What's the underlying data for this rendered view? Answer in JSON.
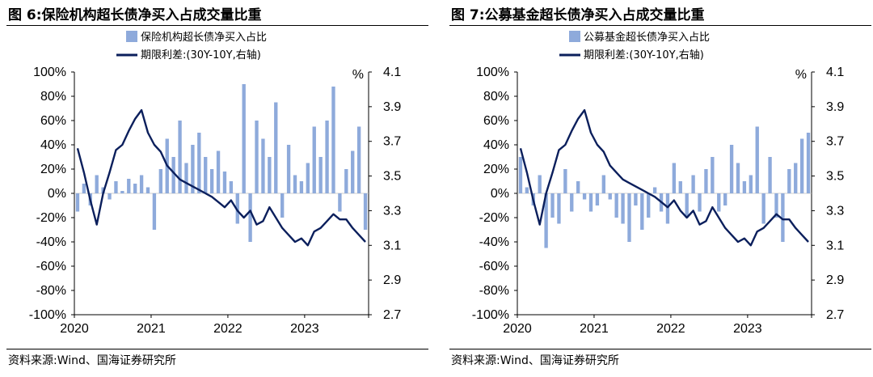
{
  "figures": [
    {
      "id": "left",
      "title": "图 6:保险机构超长债净买入占成交量比重",
      "source": "资料来源:Wind、国海证券研究所",
      "chart_data": {
        "type": "bar+line",
        "unit_label": "%",
        "y_left": {
          "ticks": [
            "100%",
            "80%",
            "60%",
            "40%",
            "20%",
            "0%",
            "-20%",
            "-40%",
            "-60%",
            "-80%",
            "-100%"
          ],
          "ylim": [
            -100,
            100
          ]
        },
        "y_right": {
          "ticks": [
            "4.1",
            "3.9",
            "3.7",
            "3.5",
            "3.3",
            "3.1",
            "2.9",
            "2.7"
          ],
          "ylim": [
            2.7,
            4.1
          ]
        },
        "x_ticks": [
          "2020",
          "2021",
          "2022",
          "2023"
        ],
        "legend_position": "top",
        "series": [
          {
            "name": "保险机构超长债净买入占比",
            "kind": "bar",
            "axis": "left",
            "color": "#8eaadb",
            "x": [
              "2020-01",
              "2020-02",
              "2020-03",
              "2020-04",
              "2020-05",
              "2020-06",
              "2020-07",
              "2020-08",
              "2020-09",
              "2020-10",
              "2020-11",
              "2020-12",
              "2021-01",
              "2021-02",
              "2021-03",
              "2021-04",
              "2021-05",
              "2021-06",
              "2021-07",
              "2021-08",
              "2021-09",
              "2021-10",
              "2021-11",
              "2021-12",
              "2022-01",
              "2022-02",
              "2022-03",
              "2022-04",
              "2022-05",
              "2022-06",
              "2022-07",
              "2022-08",
              "2022-09",
              "2022-10",
              "2022-11",
              "2022-12",
              "2023-01",
              "2023-02",
              "2023-03",
              "2023-04",
              "2023-05",
              "2023-06",
              "2023-07",
              "2023-08",
              "2023-09",
              "2023-10"
            ],
            "values": [
              -15,
              8,
              -10,
              15,
              5,
              -5,
              10,
              2,
              12,
              8,
              15,
              5,
              -30,
              20,
              45,
              30,
              60,
              25,
              40,
              50,
              30,
              20,
              35,
              18,
              10,
              -25,
              90,
              -40,
              60,
              45,
              30,
              75,
              -20,
              40,
              15,
              10,
              25,
              55,
              30,
              60,
              88,
              -15,
              20,
              35,
              55,
              -30
            ]
          },
          {
            "name": "期限利差:(30Y-10Y,右轴)",
            "kind": "line",
            "axis": "right",
            "color": "#0b1f5c",
            "x": [
              "2020-01",
              "2020-02",
              "2020-03",
              "2020-04",
              "2020-05",
              "2020-06",
              "2020-07",
              "2020-08",
              "2020-09",
              "2020-10",
              "2020-11",
              "2020-12",
              "2021-01",
              "2021-02",
              "2021-03",
              "2021-04",
              "2021-05",
              "2021-06",
              "2021-07",
              "2021-08",
              "2021-09",
              "2021-10",
              "2021-11",
              "2021-12",
              "2022-01",
              "2022-02",
              "2022-03",
              "2022-04",
              "2022-05",
              "2022-06",
              "2022-07",
              "2022-08",
              "2022-09",
              "2022-10",
              "2022-11",
              "2022-12",
              "2023-01",
              "2023-02",
              "2023-03",
              "2023-04",
              "2023-05",
              "2023-06",
              "2023-07",
              "2023-08",
              "2023-09",
              "2023-10"
            ],
            "values": [
              3.66,
              3.52,
              3.36,
              3.22,
              3.4,
              3.52,
              3.65,
              3.68,
              3.76,
              3.83,
              3.88,
              3.75,
              3.68,
              3.64,
              3.56,
              3.52,
              3.48,
              3.46,
              3.44,
              3.42,
              3.4,
              3.38,
              3.35,
              3.32,
              3.36,
              3.3,
              3.26,
              3.3,
              3.22,
              3.24,
              3.32,
              3.26,
              3.2,
              3.16,
              3.12,
              3.14,
              3.1,
              3.18,
              3.2,
              3.24,
              3.28,
              3.25,
              3.25,
              3.2,
              3.16,
              3.12
            ]
          }
        ]
      }
    },
    {
      "id": "right",
      "title": "图 7:公募基金超长债净买入占成交量比重",
      "source": "资料来源:Wind、国海证券研究所",
      "chart_data": {
        "type": "bar+line",
        "unit_label": "%",
        "y_left": {
          "ticks": [
            "100%",
            "80%",
            "60%",
            "40%",
            "20%",
            "0%",
            "-20%",
            "-40%",
            "-60%",
            "-80%",
            "-100%"
          ],
          "ylim": [
            -100,
            100
          ]
        },
        "y_right": {
          "ticks": [
            "4.1",
            "3.9",
            "3.7",
            "3.5",
            "3.3",
            "3.1",
            "2.9",
            "2.7"
          ],
          "ylim": [
            2.7,
            4.1
          ]
        },
        "x_ticks": [
          "2020",
          "2021",
          "2022",
          "2023"
        ],
        "legend_position": "top",
        "series": [
          {
            "name": "公募基金超长债净买入占比",
            "kind": "bar",
            "axis": "left",
            "color": "#8eaadb",
            "x": [
              "2020-01",
              "2020-02",
              "2020-03",
              "2020-04",
              "2020-05",
              "2020-06",
              "2020-07",
              "2020-08",
              "2020-09",
              "2020-10",
              "2020-11",
              "2020-12",
              "2021-01",
              "2021-02",
              "2021-03",
              "2021-04",
              "2021-05",
              "2021-06",
              "2021-07",
              "2021-08",
              "2021-09",
              "2021-10",
              "2021-11",
              "2021-12",
              "2022-01",
              "2022-02",
              "2022-03",
              "2022-04",
              "2022-05",
              "2022-06",
              "2022-07",
              "2022-08",
              "2022-09",
              "2022-10",
              "2022-11",
              "2022-12",
              "2023-01",
              "2023-02",
              "2023-03",
              "2023-04",
              "2023-05",
              "2023-06",
              "2023-07",
              "2023-08",
              "2023-09",
              "2023-10"
            ],
            "values": [
              30,
              5,
              -10,
              15,
              -45,
              -20,
              -25,
              20,
              -15,
              10,
              -5,
              -15,
              -10,
              15,
              -5,
              -20,
              -25,
              -40,
              -10,
              -30,
              -20,
              5,
              -15,
              -25,
              25,
              10,
              -20,
              15,
              -15,
              20,
              30,
              -15,
              -10,
              40,
              25,
              10,
              15,
              55,
              -25,
              30,
              -20,
              -40,
              20,
              25,
              45,
              50
            ]
          },
          {
            "name": "期限利差:(30Y-10Y,右轴)",
            "kind": "line",
            "axis": "right",
            "color": "#0b1f5c",
            "x": [
              "2020-01",
              "2020-02",
              "2020-03",
              "2020-04",
              "2020-05",
              "2020-06",
              "2020-07",
              "2020-08",
              "2020-09",
              "2020-10",
              "2020-11",
              "2020-12",
              "2021-01",
              "2021-02",
              "2021-03",
              "2021-04",
              "2021-05",
              "2021-06",
              "2021-07",
              "2021-08",
              "2021-09",
              "2021-10",
              "2021-11",
              "2021-12",
              "2022-01",
              "2022-02",
              "2022-03",
              "2022-04",
              "2022-05",
              "2022-06",
              "2022-07",
              "2022-08",
              "2022-09",
              "2022-10",
              "2022-11",
              "2022-12",
              "2023-01",
              "2023-02",
              "2023-03",
              "2023-04",
              "2023-05",
              "2023-06",
              "2023-07",
              "2023-08",
              "2023-09",
              "2023-10"
            ],
            "values": [
              3.66,
              3.52,
              3.36,
              3.22,
              3.4,
              3.52,
              3.65,
              3.68,
              3.76,
              3.83,
              3.88,
              3.75,
              3.68,
              3.64,
              3.56,
              3.52,
              3.48,
              3.46,
              3.44,
              3.42,
              3.4,
              3.38,
              3.35,
              3.32,
              3.36,
              3.3,
              3.26,
              3.3,
              3.22,
              3.24,
              3.32,
              3.26,
              3.2,
              3.16,
              3.12,
              3.14,
              3.1,
              3.18,
              3.2,
              3.24,
              3.28,
              3.25,
              3.25,
              3.2,
              3.16,
              3.12
            ]
          }
        ]
      }
    }
  ]
}
